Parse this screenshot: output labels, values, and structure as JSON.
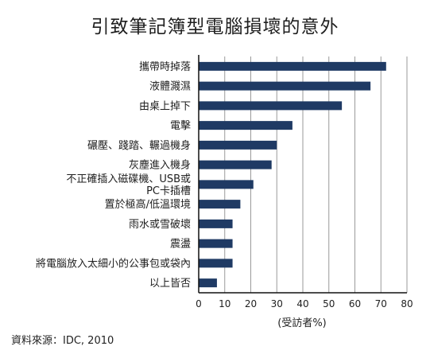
{
  "chart_data": {
    "type": "bar",
    "orientation": "horizontal",
    "title": "引致筆記簿型電腦損壞的意外",
    "categories": [
      "攜帶時掉落",
      "液體濺濕",
      "由桌上掉下",
      "電擊",
      "碾壓、踐踏、輾過機身",
      "灰塵進入機身",
      [
        "不正確插入磁碟機、USB或",
        "PC卡插槽"
      ],
      "置於極高/低溫環境",
      "雨水或雪破壞",
      "震盪",
      "將電腦放入太細小的公事包或袋內",
      "以上皆否"
    ],
    "values": [
      72,
      66,
      55,
      36,
      30,
      28,
      21,
      16,
      13,
      13,
      13,
      7
    ],
    "xlabel": "(受訪者%)",
    "xlim": [
      0,
      80
    ],
    "xticks": [
      0,
      10,
      20,
      30,
      40,
      50,
      60,
      70,
      80
    ],
    "grid": true,
    "bar_color": "#1f3a64",
    "grid_color": "#9a9a9a"
  },
  "source_text": "資料來源：IDC, 2010"
}
